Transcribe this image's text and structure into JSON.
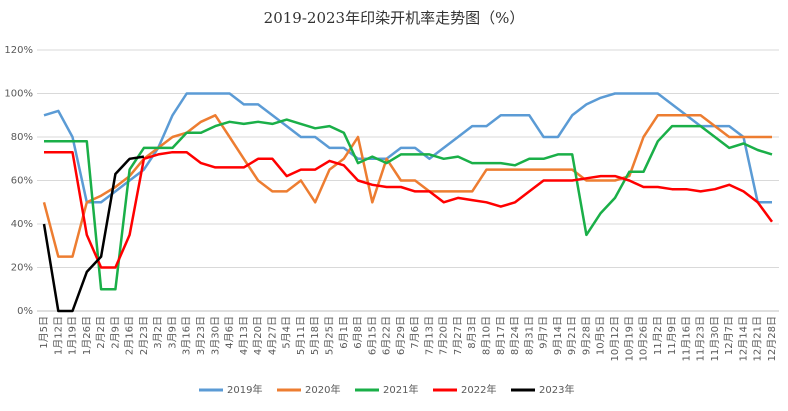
{
  "chart_data": {
    "type": "line",
    "title": "2019-2023年印染开机率走势图（%）",
    "categories": [
      "1月5日",
      "1月12日",
      "1月19日",
      "1月26日",
      "2月2日",
      "2月9日",
      "2月16日",
      "2月23日",
      "3月2日",
      "3月9日",
      "3月16日",
      "3月23日",
      "3月30日",
      "4月6日",
      "4月13日",
      "4月20日",
      "4月27日",
      "5月4日",
      "5月11日",
      "5月18日",
      "5月25日",
      "6月1日",
      "6月8日",
      "6月15日",
      "6月22日",
      "6月29日",
      "7月6日",
      "7月13日",
      "7月20日",
      "7月27日",
      "8月3日",
      "8月10日",
      "8月17日",
      "8月24日",
      "8月31日",
      "9月7日",
      "9月14日",
      "9月21日",
      "9月28日",
      "10月5日",
      "10月12日",
      "10月19日",
      "10月26日",
      "11月2日",
      "11月9日",
      "11月16日",
      "11月23日",
      "11月30日",
      "12月7日",
      "12月14日",
      "12月21日",
      "12月28日"
    ],
    "series": [
      {
        "name": "2019年",
        "color": "#5b9bd5",
        "values": [
          90,
          92,
          80,
          50,
          50,
          55,
          60,
          65,
          75,
          90,
          100,
          100,
          100,
          100,
          95,
          95,
          90,
          85,
          80,
          80,
          75,
          75,
          70,
          70,
          70,
          75,
          75,
          70,
          75,
          80,
          85,
          85,
          90,
          90,
          90,
          80,
          80,
          90,
          95,
          98,
          100,
          100,
          100,
          100,
          95,
          90,
          85,
          85,
          85,
          80,
          50,
          50
        ]
      },
      {
        "name": "2020年",
        "color": "#ed7d31",
        "values": [
          50,
          25,
          25,
          50,
          53,
          57,
          62,
          70,
          75,
          80,
          82,
          87,
          90,
          80,
          70,
          60,
          55,
          55,
          60,
          50,
          65,
          70,
          80,
          50,
          70,
          60,
          60,
          55,
          55,
          55,
          55,
          65,
          65,
          65,
          65,
          65,
          65,
          65,
          60,
          60,
          60,
          62,
          80,
          90,
          90,
          90,
          90,
          85,
          80,
          80,
          80,
          80
        ]
      },
      {
        "name": "2021年",
        "color": "#1aaf48",
        "values": [
          78,
          78,
          78,
          78,
          10,
          10,
          65,
          75,
          75,
          75,
          82,
          82,
          85,
          87,
          86,
          87,
          86,
          88,
          86,
          84,
          85,
          82,
          68,
          71,
          68,
          72,
          72,
          72,
          70,
          71,
          68,
          68,
          68,
          67,
          70,
          70,
          72,
          72,
          35,
          45,
          52,
          64,
          64,
          78,
          85,
          85,
          85,
          80,
          75,
          77,
          74,
          72
        ]
      },
      {
        "name": "2022年",
        "color": "#ff0000",
        "values": [
          73,
          73,
          73,
          35,
          20,
          20,
          35,
          70,
          72,
          73,
          73,
          68,
          66,
          66,
          66,
          70,
          70,
          62,
          65,
          65,
          69,
          67,
          60,
          58,
          57,
          57,
          55,
          55,
          50,
          52,
          51,
          50,
          48,
          50,
          55,
          60,
          60,
          60,
          61,
          62,
          62,
          60,
          57,
          57,
          56,
          56,
          55,
          56,
          58,
          55,
          50,
          41
        ]
      },
      {
        "name": "2023年",
        "color": "#000000",
        "values": [
          40,
          0,
          0,
          18,
          25,
          63,
          70,
          71,
          null,
          null,
          null,
          null,
          null,
          null,
          null,
          null,
          null,
          null,
          null,
          null,
          null,
          null,
          null,
          null,
          null,
          null,
          null,
          null,
          null,
          null,
          null,
          null,
          null,
          null,
          null,
          null,
          null,
          null,
          null,
          null,
          null,
          null,
          null,
          null,
          null,
          null,
          null,
          null,
          null,
          null,
          null,
          null
        ]
      }
    ],
    "ylim": [
      0,
      120
    ],
    "yticks": [
      {
        "value": 0,
        "label": "0%"
      },
      {
        "value": 20,
        "label": "20%"
      },
      {
        "value": 40,
        "label": "40%"
      },
      {
        "value": 60,
        "label": "60%"
      },
      {
        "value": 80,
        "label": "80%"
      },
      {
        "value": 100,
        "label": "100%"
      },
      {
        "value": 120,
        "label": "120%"
      }
    ],
    "grid": true,
    "legend": "bottom"
  }
}
